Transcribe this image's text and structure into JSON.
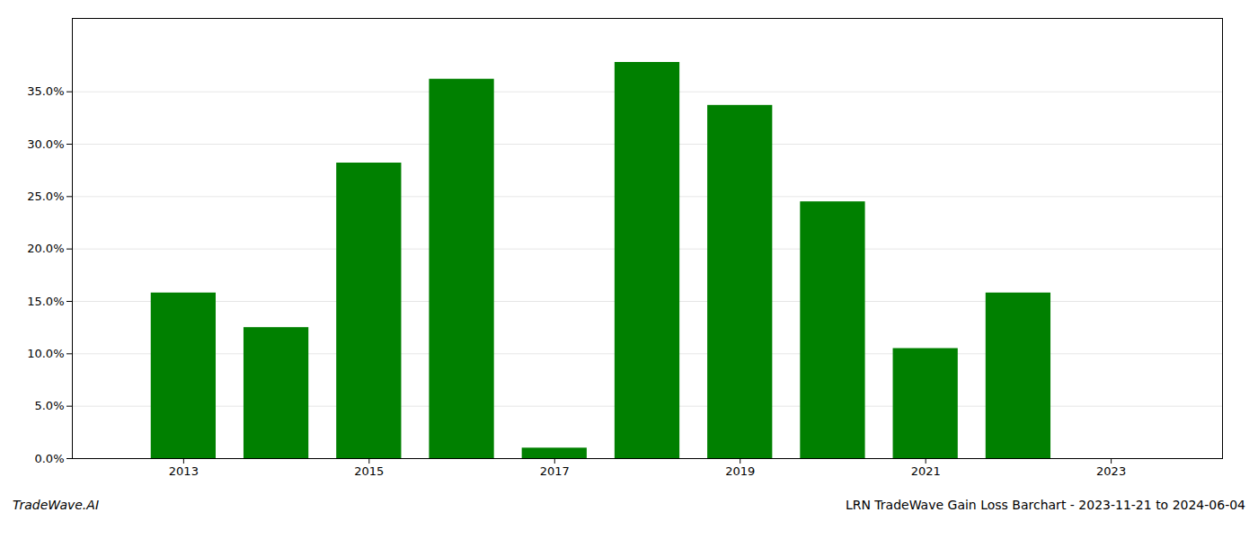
{
  "chart_data": {
    "type": "bar",
    "title": "LRN TradeWave Gain Loss Barchart - 2023-11-21 to 2024-06-04",
    "annotations": [
      "TradeWave.AI"
    ],
    "x": [
      2013,
      2014,
      2015,
      2016,
      2017,
      2018,
      2019,
      2020,
      2021,
      2022
    ],
    "values": [
      0.158,
      0.125,
      0.282,
      0.362,
      0.01,
      0.378,
      0.337,
      0.245,
      0.105,
      0.158
    ],
    "color": "#008000",
    "xlim": [
      2011.8,
      2024.2
    ],
    "xticks": [
      2013,
      2015,
      2017,
      2019,
      2021,
      2023
    ],
    "ylim": [
      0.0,
      0.42
    ],
    "yticks": [
      {
        "value": 0.0,
        "label": "0.0%"
      },
      {
        "value": 0.05,
        "label": "5.0%"
      },
      {
        "value": 0.1,
        "label": "10.0%"
      },
      {
        "value": 0.15,
        "label": "15.0%"
      },
      {
        "value": 0.2,
        "label": "20.0%"
      },
      {
        "value": 0.25,
        "label": "25.0%"
      },
      {
        "value": 0.3,
        "label": "30.0%"
      },
      {
        "value": 0.35,
        "label": "35.0%"
      }
    ],
    "grid": true
  }
}
